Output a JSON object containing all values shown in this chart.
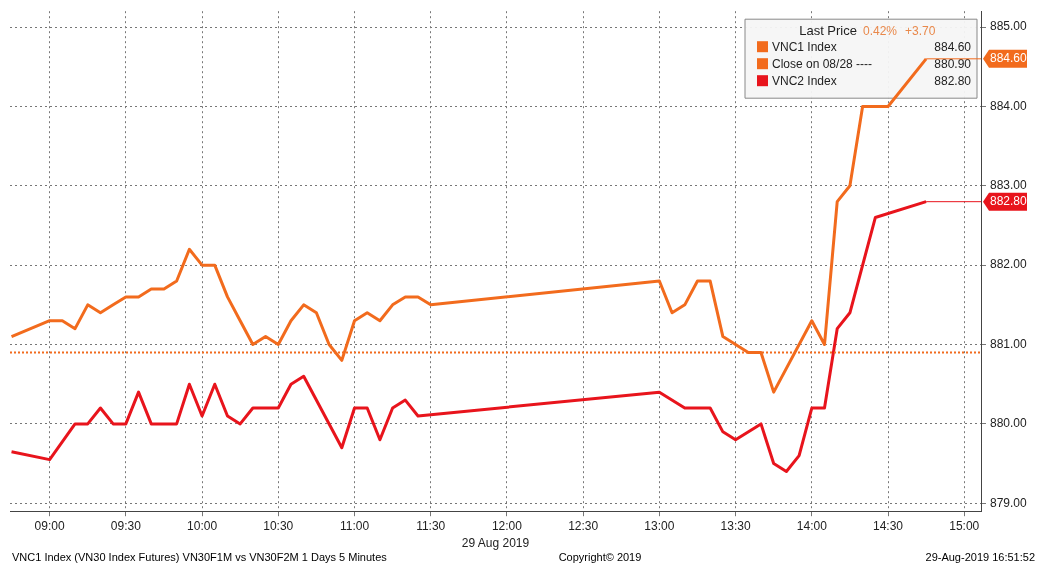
{
  "chart_data": {
    "type": "line",
    "xlabel": "29 Aug 2019",
    "xlim": [
      8.74,
      15.11
    ],
    "xticks": [
      {
        "value": 9,
        "label": "09:00"
      },
      {
        "value": 9.5,
        "label": "09:30"
      },
      {
        "value": 10,
        "label": "10:00"
      },
      {
        "value": 10.5,
        "label": "10:30"
      },
      {
        "value": 11,
        "label": "11:00"
      },
      {
        "value": 11.5,
        "label": "11:30"
      },
      {
        "value": 12,
        "label": "12:00"
      },
      {
        "value": 12.5,
        "label": "12:30"
      },
      {
        "value": 13,
        "label": "13:00"
      },
      {
        "value": 13.5,
        "label": "13:30"
      },
      {
        "value": 14,
        "label": "14:00"
      },
      {
        "value": 14.5,
        "label": "14:30"
      },
      {
        "value": 15,
        "label": "15:00"
      }
    ],
    "ylim": [
      878.9,
      885.2
    ],
    "yticks": [
      {
        "value": 879,
        "label": "879.00"
      },
      {
        "value": 880,
        "label": "880.00"
      },
      {
        "value": 881,
        "label": "881.00"
      },
      {
        "value": 882,
        "label": "882.00"
      },
      {
        "value": 883,
        "label": "883.00"
      },
      {
        "value": 884,
        "label": "884.00"
      },
      {
        "value": 885,
        "label": "885.00"
      }
    ],
    "grid": true,
    "legend": "top right",
    "marker": "none",
    "line_style": "solid",
    "series": [
      {
        "name": "VNC1 Index",
        "color": "#f26b1d",
        "x": [
          8.75,
          9,
          9.0833,
          9.1667,
          9.25,
          9.3333,
          9.4167,
          9.5,
          9.5833,
          9.6667,
          9.75,
          9.8333,
          9.9167,
          10,
          10.0833,
          10.1667,
          10.25,
          10.3333,
          10.4167,
          10.5,
          10.5833,
          10.6667,
          10.75,
          10.8333,
          10.9167,
          11,
          11.0833,
          11.1667,
          11.25,
          11.3333,
          11.4167,
          11.5,
          13,
          13.0833,
          13.1667,
          13.25,
          13.3333,
          13.4167,
          13.5,
          13.5833,
          13.6667,
          13.75,
          14,
          14.0833,
          14.1667,
          14.25,
          14.3333,
          14.4167,
          14.5,
          14.75
        ],
        "values": [
          881.1,
          881.3,
          881.3,
          881.2,
          881.5,
          881.4,
          881.5,
          881.6,
          881.6,
          881.7,
          881.7,
          881.8,
          882.2,
          882.0,
          882.0,
          881.6,
          881.3,
          881.0,
          881.1,
          881.0,
          881.3,
          881.5,
          881.4,
          881.0,
          880.8,
          881.3,
          881.4,
          881.3,
          881.5,
          881.6,
          881.6,
          881.5,
          881.8,
          881.4,
          881.5,
          881.8,
          881.8,
          881.1,
          881.0,
          880.9,
          880.9,
          880.4,
          881.3,
          881.0,
          882.8,
          883.0,
          884.0,
          884.0,
          884.0,
          884.6
        ]
      },
      {
        "name": "VNC2 Index",
        "color": "#e8141c",
        "x": [
          8.75,
          9,
          9.1667,
          9.25,
          9.3333,
          9.4167,
          9.5,
          9.5833,
          9.6667,
          9.75,
          9.8333,
          9.9167,
          10,
          10.0833,
          10.1667,
          10.25,
          10.3333,
          10.4167,
          10.5,
          10.5833,
          10.6667,
          10.9167,
          11,
          11.0833,
          11.1667,
          11.25,
          11.3333,
          11.4167,
          13,
          13.1667,
          13.25,
          13.3333,
          13.4167,
          13.5,
          13.6667,
          13.75,
          13.8333,
          13.9167,
          14,
          14.0833,
          14.1667,
          14.25,
          14.4167,
          14.75
        ],
        "values": [
          879.65,
          879.55,
          880.0,
          880.0,
          880.2,
          880.0,
          880.0,
          880.4,
          880.0,
          880.0,
          880.0,
          880.5,
          880.1,
          880.5,
          880.1,
          880.0,
          880.2,
          880.2,
          880.2,
          880.5,
          880.6,
          879.7,
          880.2,
          880.2,
          879.8,
          880.2,
          880.3,
          880.1,
          880.4,
          880.2,
          880.2,
          880.2,
          879.9,
          879.8,
          880.0,
          879.5,
          879.4,
          879.6,
          880.2,
          880.2,
          881.2,
          881.4,
          882.6,
          882.8
        ]
      }
    ],
    "ref_lines": [
      {
        "axis": "y",
        "value": 880.9,
        "label": "Close on 08/28 ----",
        "color": "#f26b1d",
        "line_style": "dotted"
      }
    ],
    "legend_title": "Last Price",
    "annotations": [
      "0.42%",
      "+3.70",
      "884.60",
      "880.90",
      "882.80",
      "VNC1 Index (VN30 Index Futures) VN30F1M vs VN30F2M 1 Days 5 Minutes",
      "Copyright© 2019",
      "29-Aug-2019 16:51:52",
      "884.60",
      "882.80"
    ]
  }
}
